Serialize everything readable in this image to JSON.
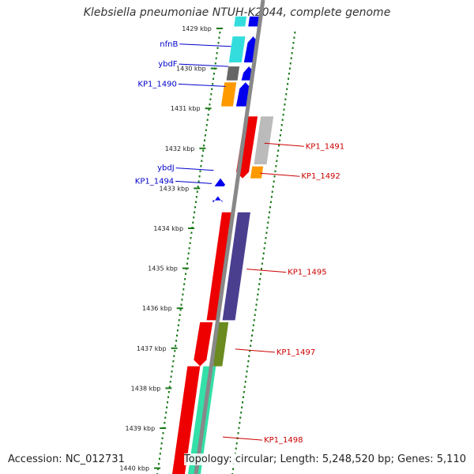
{
  "title": "Klebsiella pneumoniae NTUH-K2044, complete genome",
  "accession": "Accession: NC_012731",
  "topology": "Topology: circular; Length: 5,248,520 bp; Genes: 5,110",
  "scale": {
    "unit": "kbp",
    "ticks": [
      {
        "label": "1429 kbp",
        "kbp": 1429
      },
      {
        "label": "1430 kbp",
        "kbp": 1430
      },
      {
        "label": "1431 kbp",
        "kbp": 1431
      },
      {
        "label": "1432 kbp",
        "kbp": 1432
      },
      {
        "label": "1433 kbp",
        "kbp": 1433
      },
      {
        "label": "1434 kbp",
        "kbp": 1434
      },
      {
        "label": "1435 kbp",
        "kbp": 1435
      },
      {
        "label": "1436 kbp",
        "kbp": 1436
      },
      {
        "label": "1437 kbp",
        "kbp": 1437
      },
      {
        "label": "1438 kbp",
        "kbp": 1438
      },
      {
        "label": "1439 kbp",
        "kbp": 1439
      },
      {
        "label": "1440 kbp",
        "kbp": 1440
      }
    ]
  },
  "genes": {
    "reverse_strand_labels": [
      {
        "label": "nfnB",
        "kbp": 1429.45,
        "color": "#0000cc"
      },
      {
        "label": "ybdF",
        "kbp": 1429.95,
        "color": "#0000cc"
      },
      {
        "label": "KP1_1490",
        "kbp": 1430.45,
        "color": "#0000cc"
      },
      {
        "label": "ybdJ",
        "kbp": 1432.55,
        "color": "#0000cc"
      },
      {
        "label": "KP1_1494",
        "kbp": 1432.88,
        "color": "#0000cc"
      }
    ],
    "forward_strand_labels": [
      {
        "label": "KP1_1491",
        "kbp": 1431.95,
        "color": "#cc0000"
      },
      {
        "label": "KP1_1492",
        "kbp": 1432.7,
        "color": "#cc0000"
      },
      {
        "label": "KP1_1495",
        "kbp": 1435.1,
        "color": "#cc0000"
      },
      {
        "label": "KP1_1497",
        "kbp": 1437.1,
        "color": "#cc0000"
      },
      {
        "label": "KP1_1498",
        "kbp": 1439.3,
        "color": "#cc0000"
      }
    ]
  },
  "colors": {
    "backbone": "#888888",
    "tick": "#1a7a1a",
    "red": "#ee0000",
    "blue": "#0000ee",
    "cyan": "#33dddd",
    "orange": "#ff9900",
    "gray": "#666666",
    "lightgray": "#bbbbbb",
    "purple": "#4a3f8f",
    "olive": "#6b8a1f",
    "aqua": "#33e0a8"
  }
}
